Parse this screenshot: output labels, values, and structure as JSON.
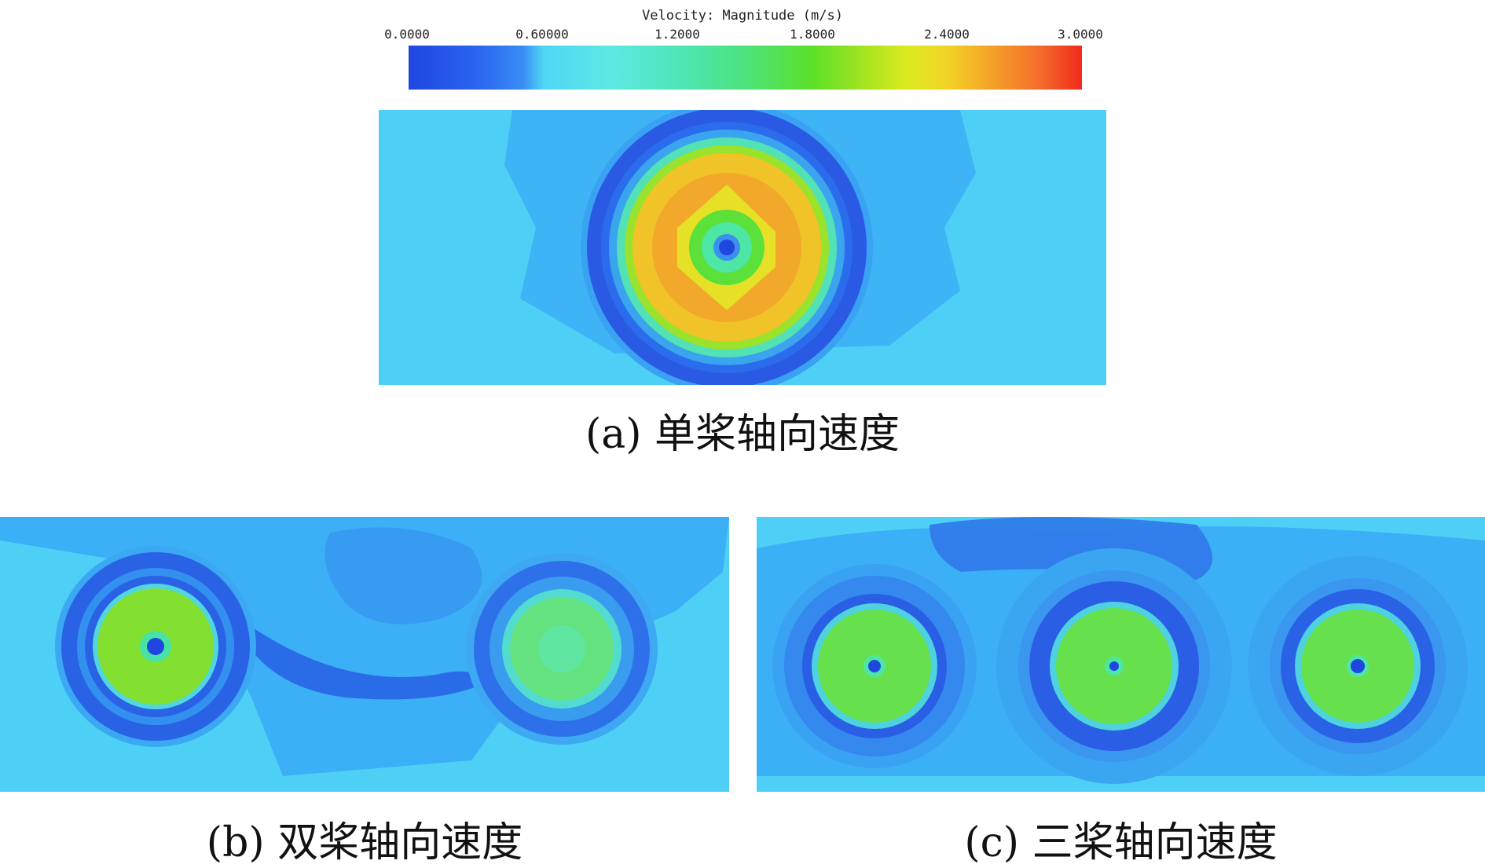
{
  "colorbar": {
    "title": "Velocity: Magnitude (m/s)",
    "ticks": [
      "0.0000",
      "0.60000",
      "1.2000",
      "1.8000",
      "2.4000",
      "3.0000"
    ],
    "min": 0,
    "max": 3,
    "colors": [
      "#2046e0",
      "#4ed6f6",
      "#4ce27c",
      "#dcea20",
      "#f49e28",
      "#f02a1c"
    ]
  },
  "panels": {
    "a": {
      "caption": "(a) 单桨轴向速度"
    },
    "b": {
      "caption": "(b) 双桨轴向速度"
    },
    "c": {
      "caption": "(c) 三桨轴向速度"
    }
  }
}
